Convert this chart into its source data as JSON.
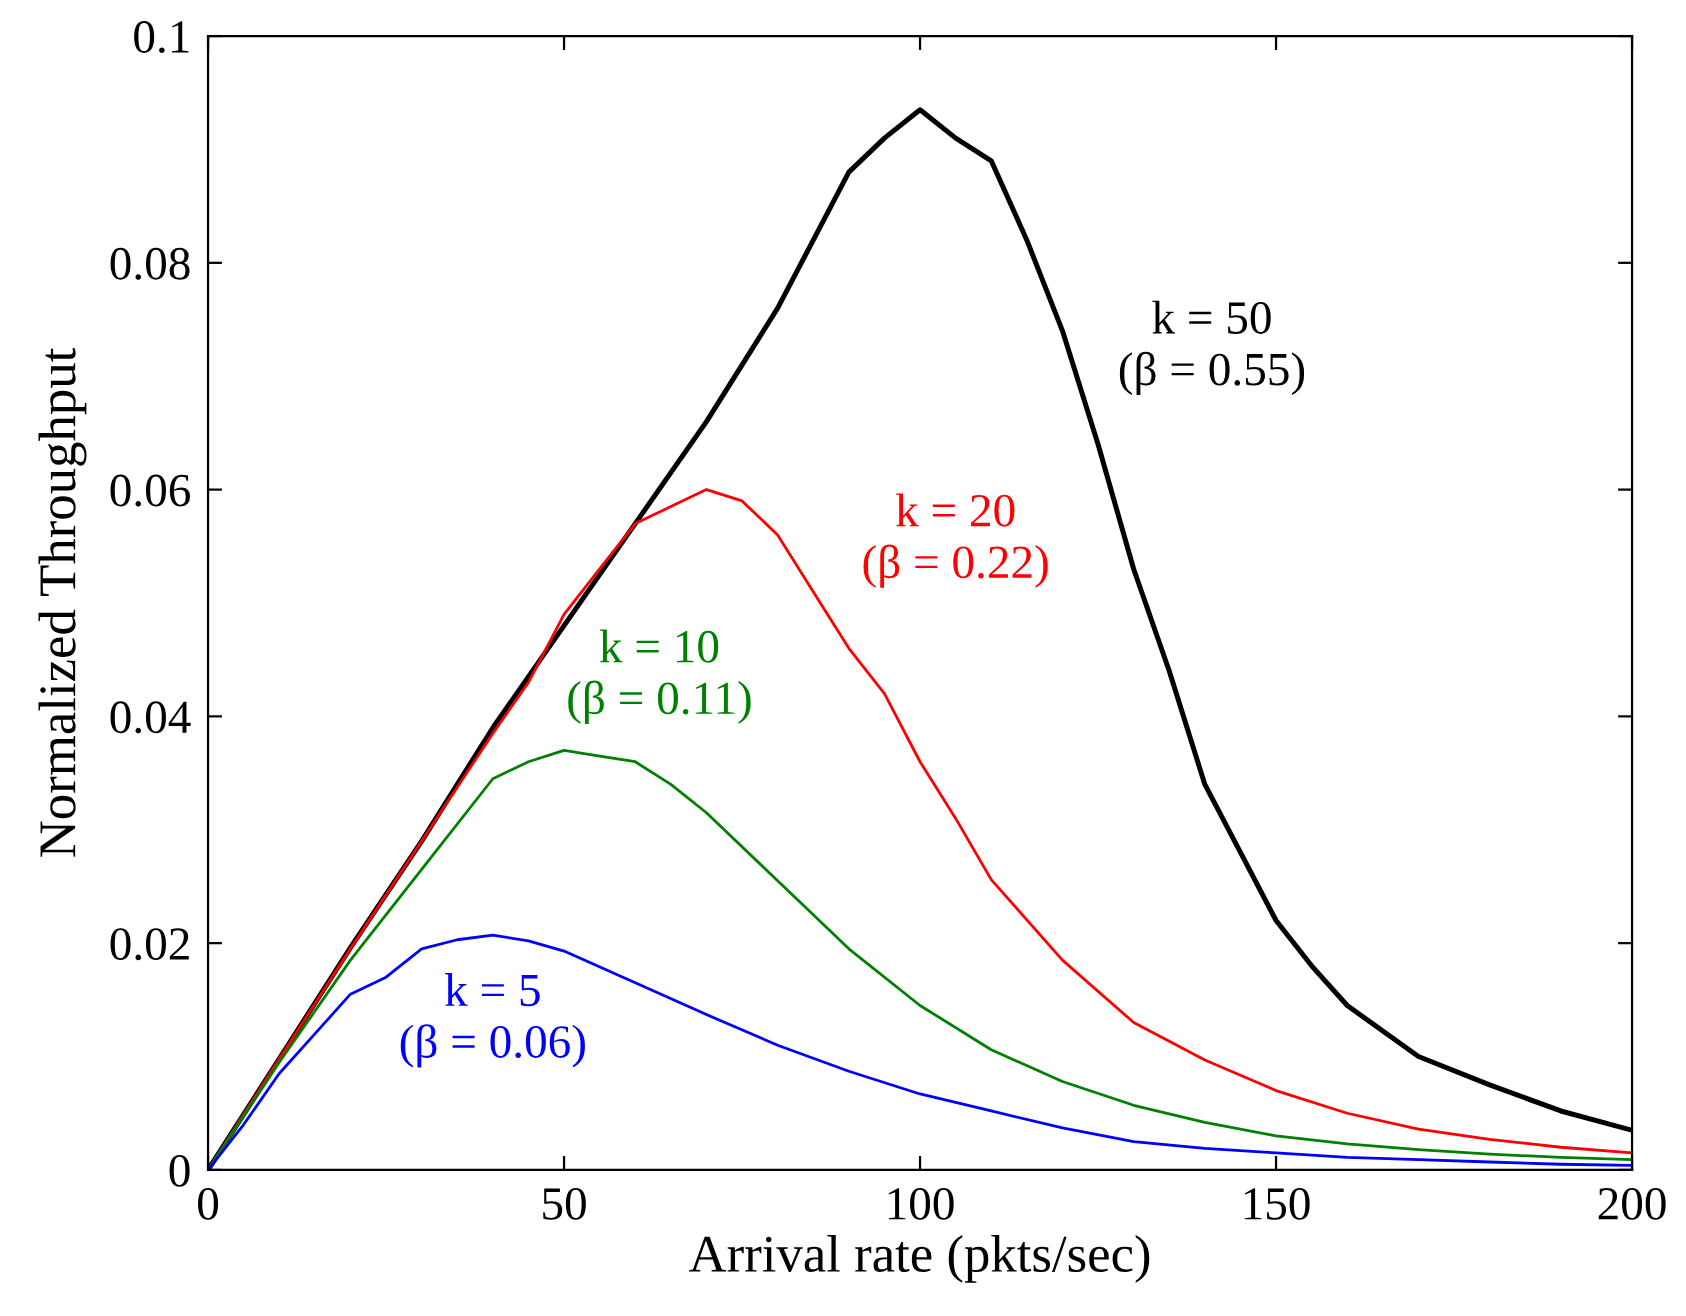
{
  "chart_data": {
    "type": "line",
    "xlabel": "Arrival rate (pkts/sec)",
    "ylabel": "Normalized Throughput",
    "xlim": [
      0,
      200
    ],
    "ylim": [
      0,
      0.1
    ],
    "xticks": [
      0,
      50,
      100,
      150,
      200
    ],
    "yticks": [
      0,
      0.02,
      0.04,
      0.06,
      0.08,
      0.1
    ],
    "grid": false,
    "legend": false,
    "marker": "none",
    "line_style": "solid",
    "series": [
      {
        "name": "k = 50\n(β = 0.55)",
        "color": "#000000",
        "x": [
          0,
          10,
          20,
          30,
          40,
          50,
          60,
          70,
          80,
          90,
          95,
          100,
          105,
          110,
          115,
          120,
          125,
          130,
          135,
          140,
          145,
          150,
          155,
          160,
          170,
          180,
          190,
          200
        ],
        "values": [
          0,
          0.0098,
          0.0196,
          0.029,
          0.039,
          0.048,
          0.057,
          0.066,
          0.076,
          0.088,
          0.091,
          0.0935,
          0.091,
          0.089,
          0.082,
          0.074,
          0.064,
          0.053,
          0.044,
          0.034,
          0.028,
          0.022,
          0.018,
          0.0145,
          0.01,
          0.0075,
          0.0052,
          0.0035
        ]
      },
      {
        "name": "k = 20\n(β = 0.22)",
        "color": "#ff0000",
        "x": [
          0,
          10,
          20,
          30,
          40,
          45,
          50,
          55,
          60,
          65,
          70,
          75,
          80,
          85,
          90,
          95,
          100,
          105,
          110,
          120,
          130,
          140,
          150,
          160,
          170,
          180,
          190,
          200
        ],
        "values": [
          0,
          0.0098,
          0.0195,
          0.029,
          0.0385,
          0.043,
          0.049,
          0.053,
          0.057,
          0.0585,
          0.06,
          0.059,
          0.056,
          0.051,
          0.046,
          0.042,
          0.036,
          0.031,
          0.0256,
          0.0185,
          0.013,
          0.0097,
          0.007,
          0.005,
          0.0036,
          0.0027,
          0.002,
          0.0015
        ]
      },
      {
        "name": "k = 10\n(β = 0.11)",
        "color": "#008000",
        "x": [
          0,
          10,
          20,
          30,
          40,
          45,
          50,
          55,
          60,
          65,
          70,
          80,
          90,
          100,
          110,
          120,
          130,
          140,
          150,
          160,
          170,
          180,
          190,
          200
        ],
        "values": [
          0,
          0.0095,
          0.0185,
          0.0265,
          0.0345,
          0.036,
          0.037,
          0.0365,
          0.036,
          0.034,
          0.0315,
          0.0255,
          0.0195,
          0.0145,
          0.0106,
          0.0078,
          0.0057,
          0.0042,
          0.003,
          0.0023,
          0.0018,
          0.0014,
          0.0011,
          0.0009
        ]
      },
      {
        "name": "k = 5\n(β = 0.06)",
        "color": "#0000ff",
        "x": [
          0,
          5,
          10,
          15,
          20,
          25,
          30,
          35,
          40,
          45,
          50,
          60,
          70,
          80,
          90,
          100,
          110,
          120,
          130,
          140,
          150,
          160,
          170,
          180,
          190,
          200
        ],
        "values": [
          0,
          0.004,
          0.0085,
          0.012,
          0.0155,
          0.017,
          0.0195,
          0.0203,
          0.0207,
          0.0202,
          0.0193,
          0.0165,
          0.0137,
          0.011,
          0.0087,
          0.0067,
          0.0052,
          0.0037,
          0.0025,
          0.0019,
          0.0015,
          0.0011,
          0.0009,
          0.0007,
          0.0005,
          0.0004
        ]
      }
    ]
  }
}
